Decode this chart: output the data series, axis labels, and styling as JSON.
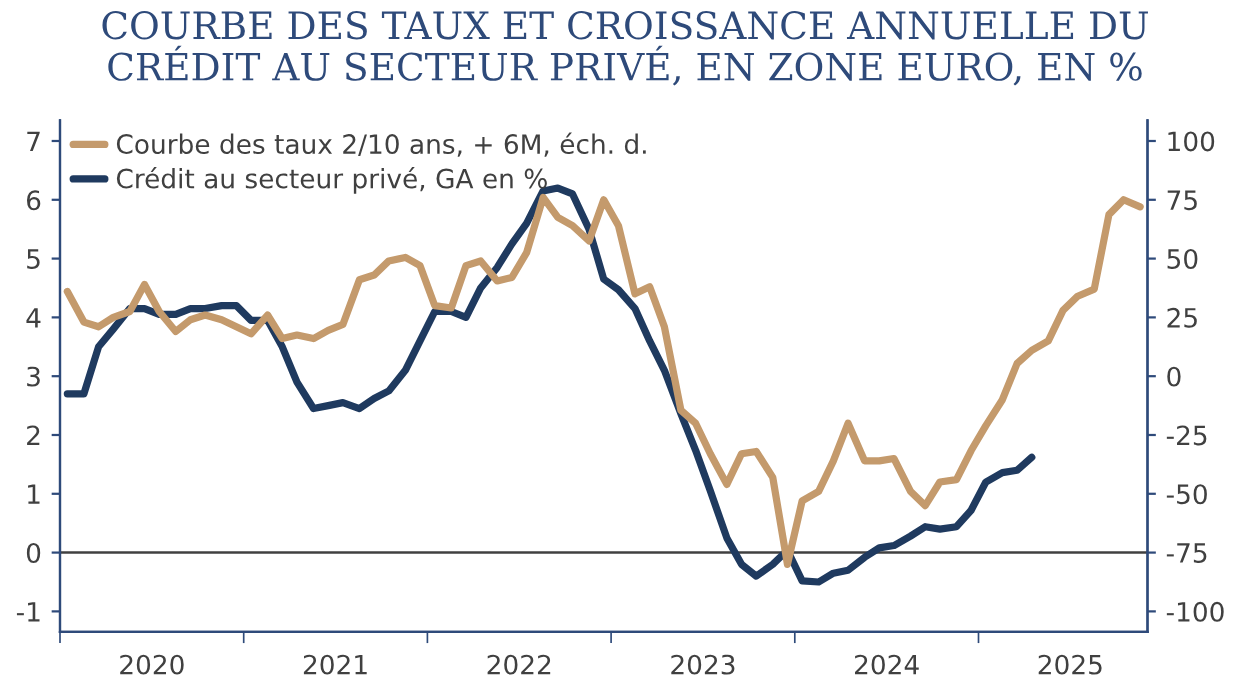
{
  "chart_data": {
    "type": "line",
    "title": "COURBE DES TAUX ET CROISSANCE ANNUELLE DU\nCRÉDIT AU SECTEUR PRIVÉ, EN ZONE EURO, EN %",
    "series": [
      {
        "name": "Courbe des taux 2/10 ans, + 6M, éch. d.",
        "color": "#c49a6c",
        "axis": "y2",
        "x": [
          2020.04,
          2020.13,
          2020.21,
          2020.29,
          2020.38,
          2020.46,
          2020.54,
          2020.63,
          2020.71,
          2020.79,
          2020.88,
          2020.96,
          2021.04,
          2021.13,
          2021.21,
          2021.29,
          2021.38,
          2021.46,
          2021.54,
          2021.63,
          2021.71,
          2021.79,
          2021.88,
          2021.96,
          2022.04,
          2022.13,
          2022.21,
          2022.29,
          2022.38,
          2022.46,
          2022.54,
          2022.63,
          2022.71,
          2022.79,
          2022.88,
          2022.96,
          2023.04,
          2023.13,
          2023.21,
          2023.29,
          2023.38,
          2023.46,
          2023.54,
          2023.63,
          2023.71,
          2023.79,
          2023.88,
          2023.96,
          2024.04,
          2024.13,
          2024.21,
          2024.29,
          2024.38,
          2024.46,
          2024.54,
          2024.63,
          2024.71,
          2024.79,
          2024.88,
          2024.96,
          2025.04,
          2025.13,
          2025.21,
          2025.29,
          2025.38,
          2025.46,
          2025.54,
          2025.63,
          2025.71,
          2025.79,
          2025.88
        ],
        "values": [
          36,
          23,
          21,
          25,
          27.5,
          39,
          27.5,
          19,
          24,
          26,
          24,
          21,
          18,
          26,
          16,
          17.5,
          16,
          19.5,
          22,
          41,
          43,
          49,
          50.5,
          47,
          30,
          29,
          47,
          49,
          40.5,
          42,
          52.5,
          76,
          67.5,
          64,
          57.5,
          75,
          64,
          35,
          38,
          21,
          -14.5,
          -20,
          -33,
          -46,
          -33,
          -32,
          -43,
          -80,
          -53,
          -49,
          -36,
          -20,
          -36,
          -36,
          -35,
          -49,
          -55,
          -45,
          -44,
          -31.6,
          -21,
          -10,
          5.4,
          11,
          15,
          28,
          34,
          37,
          68.7,
          75,
          72
        ]
      },
      {
        "name": "Crédit au secteur privé, GA en %",
        "color": "#1f3a5f",
        "x": [
          2020.04,
          2020.13,
          2020.21,
          2020.29,
          2020.38,
          2020.46,
          2020.54,
          2020.63,
          2020.71,
          2020.79,
          2020.88,
          2020.96,
          2021.04,
          2021.13,
          2021.21,
          2021.29,
          2021.38,
          2021.46,
          2021.54,
          2021.63,
          2021.71,
          2021.79,
          2021.88,
          2021.96,
          2022.04,
          2022.13,
          2022.21,
          2022.29,
          2022.38,
          2022.46,
          2022.54,
          2022.63,
          2022.71,
          2022.79,
          2022.88,
          2022.96,
          2023.04,
          2023.13,
          2023.21,
          2023.29,
          2023.38,
          2023.46,
          2023.54,
          2023.63,
          2023.71,
          2023.79,
          2023.88,
          2023.96,
          2024.04,
          2024.13,
          2024.21,
          2024.29,
          2024.38,
          2024.46,
          2024.54,
          2024.63,
          2024.71,
          2024.79,
          2024.88,
          2024.96,
          2025.04,
          2025.13,
          2025.21,
          2025.29
        ],
        "values": [
          2.7,
          2.7,
          3.5,
          3.8,
          4.15,
          4.15,
          4.05,
          4.05,
          4.15,
          4.15,
          4.2,
          4.2,
          3.95,
          3.95,
          3.5,
          2.9,
          2.45,
          2.5,
          2.55,
          2.45,
          2.62,
          2.75,
          3.1,
          3.6,
          4.1,
          4.1,
          4.0,
          4.5,
          4.85,
          5.25,
          5.6,
          6.15,
          6.2,
          6.1,
          5.5,
          4.65,
          4.47,
          4.15,
          3.6,
          3.1,
          2.36,
          1.74,
          1.05,
          0.25,
          -0.2,
          -0.4,
          -0.2,
          0.04,
          -0.48,
          -0.5,
          -0.35,
          -0.3,
          -0.08,
          0.08,
          0.12,
          0.28,
          0.44,
          0.4,
          0.44,
          0.72,
          1.2,
          1.36,
          1.4,
          1.62
        ]
      }
    ],
    "xlim": [
      2020,
      2025.92
    ],
    "xticks": [
      {
        "value": 2020,
        "label": null
      },
      {
        "value": 2020.5,
        "label": "2020"
      },
      {
        "value": 2021,
        "label": null
      },
      {
        "value": 2021.5,
        "label": "2021"
      },
      {
        "value": 2022,
        "label": null
      },
      {
        "value": 2022.5,
        "label": "2022"
      },
      {
        "value": 2023,
        "label": null
      },
      {
        "value": 2023.5,
        "label": "2023"
      },
      {
        "value": 2024,
        "label": null
      },
      {
        "value": 2024.5,
        "label": "2024"
      },
      {
        "value": 2025,
        "label": null
      },
      {
        "value": 2025.5,
        "label": "2025"
      }
    ],
    "ylim": [
      -1.35,
      7.35
    ],
    "yticks": [
      -1,
      0,
      1,
      2,
      3,
      4,
      5,
      6,
      7
    ],
    "y2lim": [
      -108.75,
      108.75
    ],
    "y2ticks": [
      -100,
      -75,
      -50,
      -25,
      0,
      25,
      50,
      75,
      100
    ],
    "ref_lines": [
      {
        "axis": "y",
        "value": 0,
        "color": "#404040"
      }
    ],
    "legend": "top left",
    "grid": false,
    "line_style": "solid",
    "marker": "none"
  }
}
